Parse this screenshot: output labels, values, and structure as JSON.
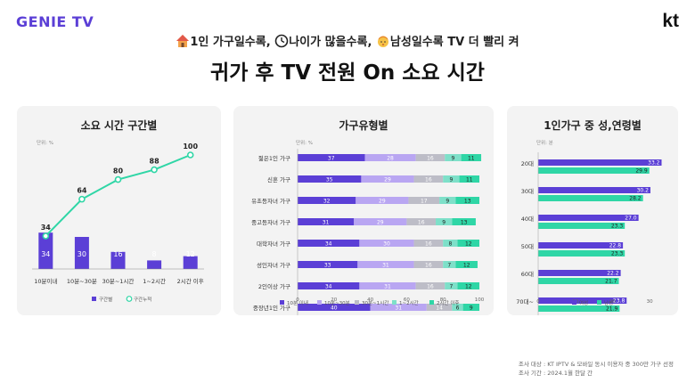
{
  "header": {
    "logo": "GENIE TV",
    "brand": "kt",
    "subtitle_parts": [
      "1인 가구일수록,",
      "나이가 많을수록,",
      "남성일수록 TV 더 빨리 켜"
    ],
    "subtitle_icons": [
      "house-icon",
      "clock-icon",
      "man-face-icon"
    ],
    "title": "귀가 후 TV 전원 On 소요 시간"
  },
  "colors": {
    "purple": "#5b3fd6",
    "light_purple": "#b9a6f2",
    "gray": "#bdbdc7",
    "teal_light": "#7ee0c9",
    "teal": "#2fd6a6",
    "panel_bg": "#f3f3f3"
  },
  "footer": {
    "lines": [
      "조사 대상 : KT IPTV & 모바일 동시 이용자 중 300만 가구 선정",
      "조사 기간 : 2024.1월 한달 간"
    ]
  },
  "chart_data": [
    {
      "type": "bar",
      "title": "소요 시간 구간별",
      "unit_label": "단위: %",
      "categories": [
        "10분이내",
        "10분~30분",
        "30분~1시간",
        "1~2시간",
        "2시간 이후"
      ],
      "series": [
        {
          "name": "구간별",
          "type": "bar",
          "values": [
            34,
            30,
            16,
            8,
            12
          ]
        },
        {
          "name": "구간누적",
          "type": "line",
          "values": [
            34,
            64,
            80,
            88,
            100
          ]
        }
      ],
      "ylim": [
        0,
        100
      ],
      "legend": "bottom"
    },
    {
      "type": "bar",
      "orientation": "horizontal",
      "stacked": true,
      "title": "가구유형별",
      "unit_label": "단위: %",
      "categories": [
        "젊은1인 가구",
        "신혼 가구",
        "유초등자녀 가구",
        "중고등자녀 가구",
        "대학자녀 가구",
        "성인자녀 가구",
        "2인이상 가구",
        "중장년1인 가구"
      ],
      "series": [
        {
          "name": "10분 이내",
          "values": [
            37,
            35,
            32,
            31,
            34,
            33,
            34,
            40
          ]
        },
        {
          "name": "10분~30분",
          "values": [
            28,
            29,
            29,
            29,
            30,
            31,
            31,
            31
          ]
        },
        {
          "name": "30분~1시간",
          "values": [
            16,
            16,
            17,
            16,
            16,
            16,
            16,
            14
          ]
        },
        {
          "name": "1~2시간",
          "values": [
            9,
            9,
            9,
            9,
            8,
            7,
            7,
            6
          ]
        },
        {
          "name": "2시간 이후",
          "values": [
            11,
            11,
            13,
            13,
            12,
            12,
            12,
            9
          ]
        }
      ],
      "xlim": [
        0,
        100
      ],
      "x_ticks": [
        0,
        20,
        40,
        60,
        80,
        100
      ],
      "legend": "bottom"
    },
    {
      "type": "bar",
      "orientation": "horizontal",
      "title": "1인가구 중 성,연령별",
      "unit_label": "단위: 분",
      "categories": [
        "20대",
        "30대",
        "40대",
        "50대",
        "60대",
        "70대~"
      ],
      "series": [
        {
          "name": "여성",
          "values": [
            33.2,
            30.2,
            27.0,
            22.8,
            22.2,
            23.8
          ]
        },
        {
          "name": "남성",
          "values": [
            29.9,
            28.2,
            23.3,
            23.3,
            21.7,
            21.9
          ]
        }
      ],
      "xlim": [
        0,
        35
      ],
      "x_ticks": [
        0,
        10,
        20,
        30
      ],
      "legend": "bottom"
    }
  ]
}
